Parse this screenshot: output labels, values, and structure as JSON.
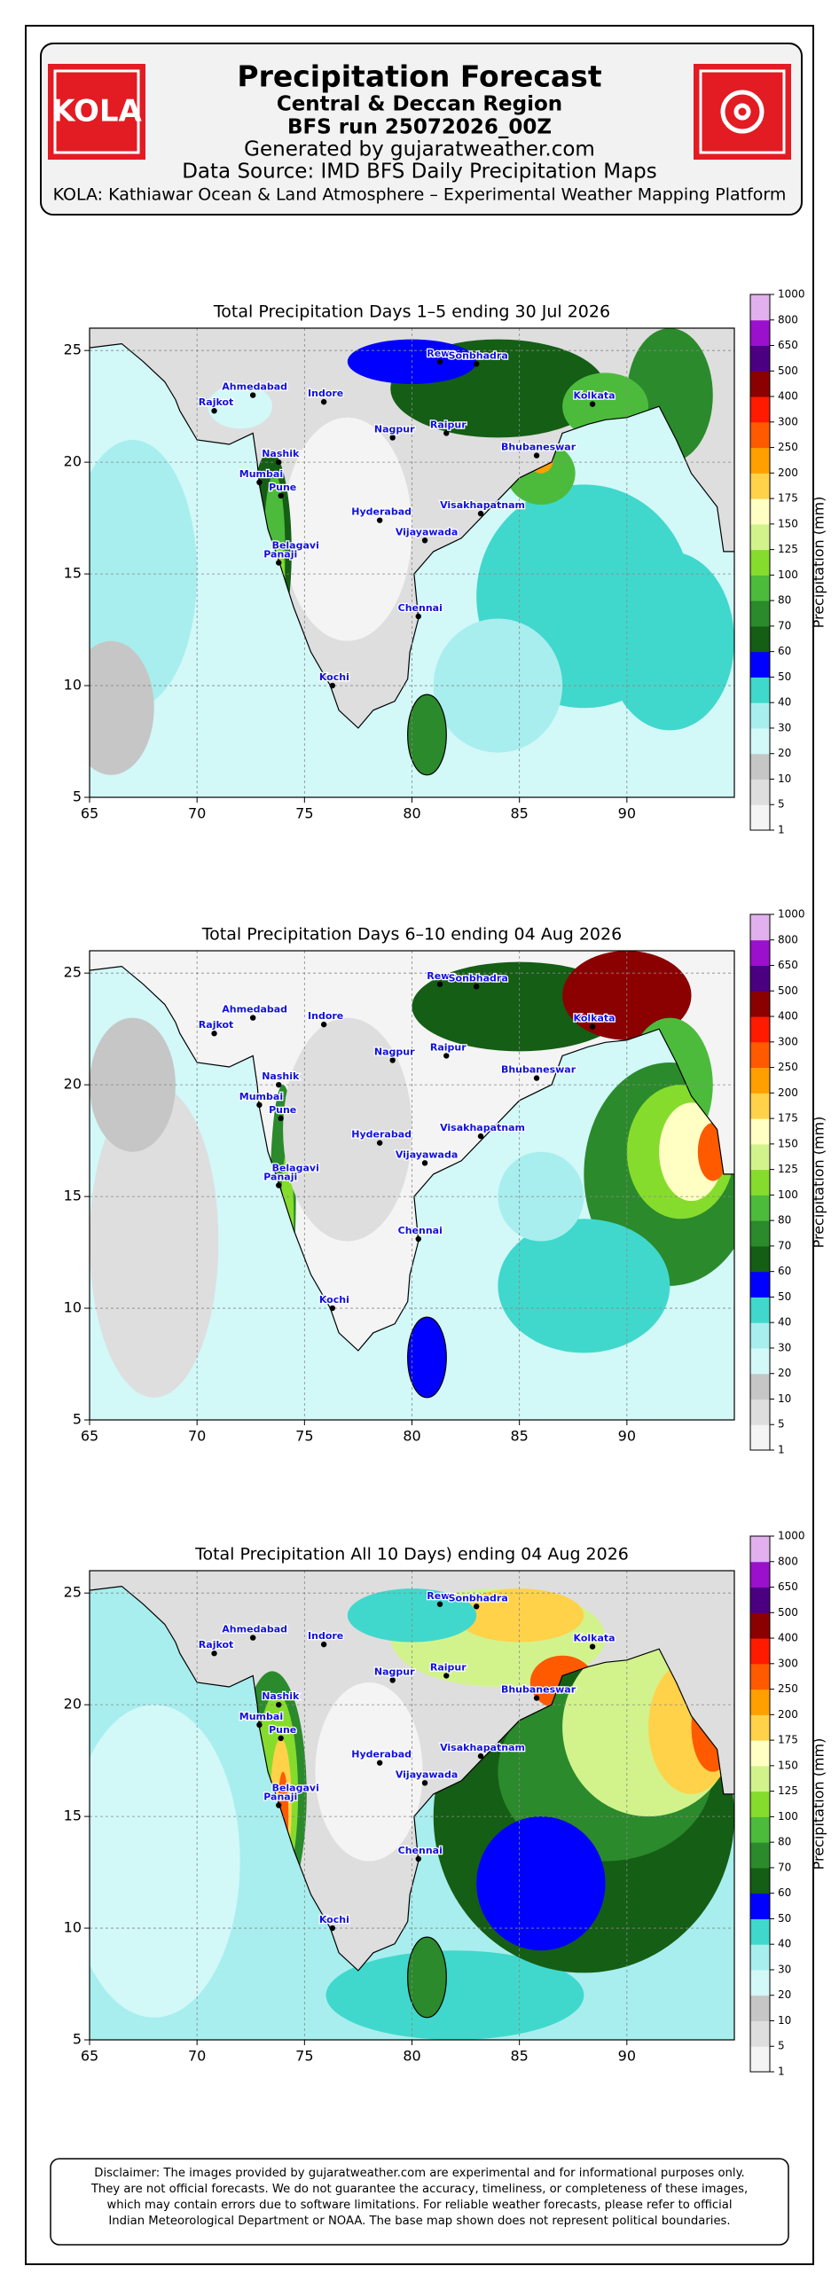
{
  "header": {
    "logo_text": "KOLA",
    "title": "Precipitation Forecast",
    "subtitle": "Central & Deccan Region",
    "run": "BFS run 25072026_00Z",
    "generated": "Generated by gujaratweather.com",
    "source": "Data Source: IMD BFS Daily Precipitation Maps",
    "platform": "KOLA: Kathiawar Ocean & Land Atmosphere – Experimental Weather Mapping Platform"
  },
  "maps": [
    {
      "title": "Total Precipitation Days 1–5 ending 30 Jul 2026",
      "xlim": [
        65,
        95
      ],
      "ylim": [
        5,
        26
      ],
      "xticks": [
        65,
        70,
        75,
        80,
        85,
        90
      ],
      "yticks": [
        5,
        10,
        15,
        20,
        25
      ]
    },
    {
      "title": "Total Precipitation Days 6–10 ending 04 Aug 2026",
      "xlim": [
        65,
        95
      ],
      "ylim": [
        5,
        26
      ],
      "xticks": [
        65,
        70,
        75,
        80,
        85,
        90
      ],
      "yticks": [
        5,
        10,
        15,
        20,
        25
      ]
    },
    {
      "title": "Total Precipitation All 10 Days) ending 04 Aug 2026",
      "xlim": [
        65,
        95
      ],
      "ylim": [
        5,
        26
      ],
      "xticks": [
        65,
        70,
        75,
        80,
        85,
        90
      ],
      "yticks": [
        5,
        10,
        15,
        20,
        25
      ]
    }
  ],
  "colorbar": {
    "label": "Precipitation (mm)",
    "levels": [
      1,
      5,
      10,
      20,
      30,
      40,
      50,
      60,
      70,
      80,
      100,
      125,
      150,
      175,
      200,
      250,
      300,
      400,
      500,
      650,
      800,
      1000
    ],
    "colors": [
      "#f4f4f4",
      "#dedede",
      "#c6c6c6",
      "#d2f8f8",
      "#a8eeee",
      "#40d8cc",
      "#0000ff",
      "#155e15",
      "#2b8a2b",
      "#4cbb3c",
      "#86dc2c",
      "#d2f38c",
      "#ffffc4",
      "#ffd24a",
      "#ffa000",
      "#ff5a00",
      "#ff1a00",
      "#8b0000",
      "#4b0082",
      "#9a10cc",
      "#e2b0ee"
    ]
  },
  "cities": [
    {
      "name": "Rajkot",
      "lon": 70.8,
      "lat": 22.3
    },
    {
      "name": "Ahmedabad",
      "lon": 72.6,
      "lat": 23.0
    },
    {
      "name": "Indore",
      "lon": 75.9,
      "lat": 22.7
    },
    {
      "name": "Rewa",
      "lon": 81.3,
      "lat": 24.5
    },
    {
      "name": "Sonbhadra",
      "lon": 83.0,
      "lat": 24.4
    },
    {
      "name": "Kolkata",
      "lon": 88.4,
      "lat": 22.6
    },
    {
      "name": "Nagpur",
      "lon": 79.1,
      "lat": 21.1
    },
    {
      "name": "Raipur",
      "lon": 81.6,
      "lat": 21.3
    },
    {
      "name": "Bhubaneswar",
      "lon": 85.8,
      "lat": 20.3
    },
    {
      "name": "Nashik",
      "lon": 73.8,
      "lat": 20.0
    },
    {
      "name": "Mumbai",
      "lon": 72.9,
      "lat": 19.1
    },
    {
      "name": "Pune",
      "lon": 73.9,
      "lat": 18.5
    },
    {
      "name": "Hyderabad",
      "lon": 78.5,
      "lat": 17.4
    },
    {
      "name": "Visakhapatnam",
      "lon": 83.2,
      "lat": 17.7
    },
    {
      "name": "Vijayawada",
      "lon": 80.6,
      "lat": 16.5
    },
    {
      "name": "Belagavi",
      "lon": 74.5,
      "lat": 15.9
    },
    {
      "name": "Panaji",
      "lon": 73.8,
      "lat": 15.5
    },
    {
      "name": "Chennai",
      "lon": 80.3,
      "lat": 13.1
    },
    {
      "name": "Kochi",
      "lon": 76.3,
      "lat": 10.0
    }
  ],
  "disclaimer": [
    "Disclaimer: The images provided by gujaratweather.com are experimental and for informational purposes only.",
    "They are not official forecasts. We do not guarantee the accuracy, timeliness, or completeness of these images,",
    "which may contain errors due to software limitations. For reliable weather forecasts, please refer to official",
    "Indian Meteorological Department or NOAA. The base map shown does not represent political boundaries."
  ]
}
